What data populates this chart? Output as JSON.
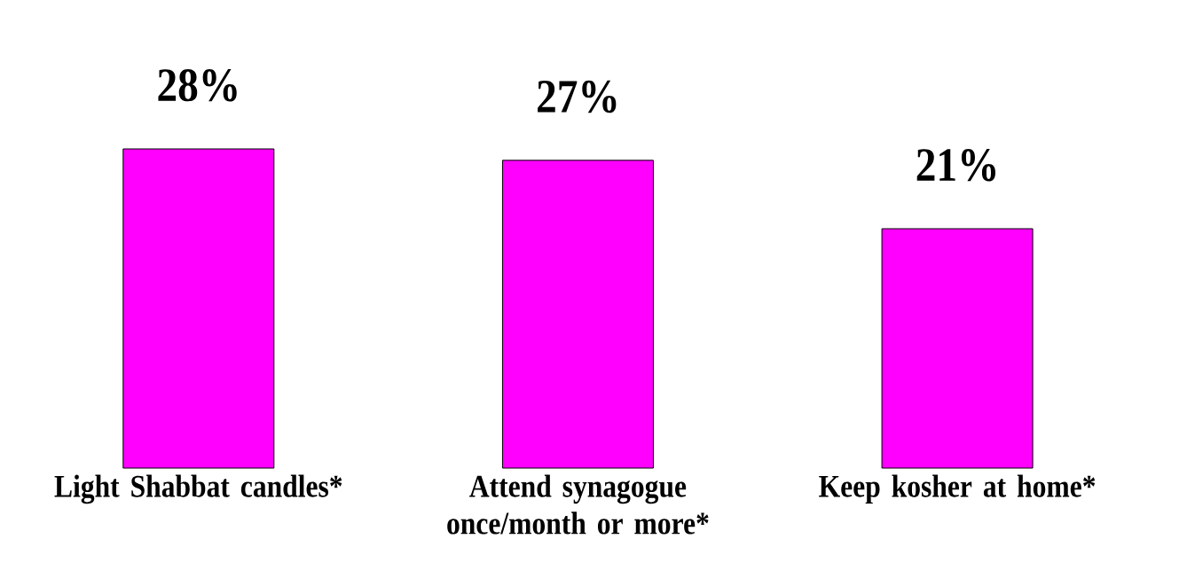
{
  "chart_data": {
    "type": "bar",
    "categories": [
      "Light Shabbat candles*",
      "Attend synagogue once/month or more*",
      "Keep kosher at home*"
    ],
    "values": [
      28,
      27,
      21
    ],
    "value_labels": [
      "28%",
      "27%",
      "21%"
    ],
    "color": "#ff00ff"
  }
}
